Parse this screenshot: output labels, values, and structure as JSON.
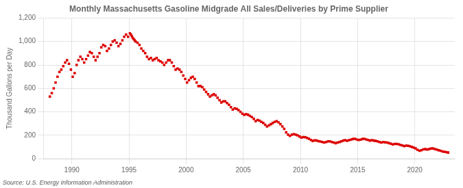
{
  "chart_data": {
    "type": "scatter",
    "title": "Monthly Massachusetts Gasoline Midgrade All Sales/Deliveries by Prime Supplier",
    "ylabel": "Thousand Gallons per Day",
    "source": "Source: U.S. Energy Information Administration",
    "color": "#dd0000",
    "marker": "square",
    "grid": true,
    "xlim": [
      1987.5,
      2023.5
    ],
    "xticks": [
      1990,
      1995,
      2000,
      2005,
      2010,
      2015,
      2020
    ],
    "ylim": [
      0,
      1200
    ],
    "yticks": [
      0,
      200,
      400,
      600,
      800,
      {
        "value": 1000,
        "label": "1,000"
      },
      {
        "value": 1200,
        "label": "1,200"
      }
    ],
    "x": [
      1988.08,
      1988.25,
      1988.42,
      1988.58,
      1988.75,
      1988.92,
      1989.08,
      1989.25,
      1989.42,
      1989.58,
      1989.75,
      1989.92,
      1990.08,
      1990.25,
      1990.42,
      1990.58,
      1990.75,
      1990.92,
      1991.08,
      1991.25,
      1991.42,
      1991.58,
      1991.75,
      1991.92,
      1992.08,
      1992.25,
      1992.42,
      1992.58,
      1992.75,
      1992.92,
      1993.08,
      1993.25,
      1993.42,
      1993.58,
      1993.75,
      1993.92,
      1994.08,
      1994.25,
      1994.42,
      1994.58,
      1994.75,
      1994.92,
      1995.08,
      1995.17,
      1995.25,
      1995.33,
      1995.42,
      1995.5,
      1995.58,
      1995.75,
      1995.92,
      1996.08,
      1996.25,
      1996.42,
      1996.58,
      1996.75,
      1996.92,
      1997.08,
      1997.25,
      1997.42,
      1997.58,
      1997.75,
      1997.92,
      1998.08,
      1998.25,
      1998.42,
      1998.58,
      1998.75,
      1998.92,
      1999.08,
      1999.25,
      1999.42,
      1999.58,
      1999.75,
      1999.92,
      2000.08,
      2000.25,
      2000.42,
      2000.58,
      2000.75,
      2000.92,
      2001.08,
      2001.25,
      2001.42,
      2001.58,
      2001.75,
      2001.92,
      2002.08,
      2002.25,
      2002.42,
      2002.58,
      2002.75,
      2002.92,
      2003.08,
      2003.25,
      2003.42,
      2003.58,
      2003.75,
      2003.92,
      2004.08,
      2004.25,
      2004.42,
      2004.58,
      2004.75,
      2004.92,
      2005.08,
      2005.25,
      2005.42,
      2005.58,
      2005.75,
      2005.92,
      2006.08,
      2006.25,
      2006.42,
      2006.58,
      2006.75,
      2006.92,
      2007.08,
      2007.25,
      2007.42,
      2007.58,
      2007.75,
      2007.92,
      2008.08,
      2008.25,
      2008.42,
      2008.58,
      2008.75,
      2008.92,
      2009.08,
      2009.25,
      2009.42,
      2009.58,
      2009.75,
      2009.92,
      2010.08,
      2010.25,
      2010.42,
      2010.58,
      2010.75,
      2010.92,
      2011.08,
      2011.25,
      2011.42,
      2011.58,
      2011.75,
      2011.92,
      2012.08,
      2012.25,
      2012.42,
      2012.58,
      2012.75,
      2012.92,
      2013.08,
      2013.25,
      2013.42,
      2013.58,
      2013.75,
      2013.92,
      2014.08,
      2014.25,
      2014.42,
      2014.58,
      2014.75,
      2014.92,
      2015.08,
      2015.25,
      2015.42,
      2015.58,
      2015.75,
      2015.92,
      2016.08,
      2016.25,
      2016.42,
      2016.58,
      2016.75,
      2016.92,
      2017.08,
      2017.25,
      2017.42,
      2017.58,
      2017.75,
      2017.92,
      2018.08,
      2018.25,
      2018.42,
      2018.58,
      2018.75,
      2018.92,
      2019.08,
      2019.25,
      2019.42,
      2019.58,
      2019.75,
      2019.92,
      2020.08,
      2020.25,
      2020.42,
      2020.58,
      2020.75,
      2020.92,
      2021.08,
      2021.25,
      2021.42,
      2021.58,
      2021.75,
      2021.92,
      2022.08,
      2022.25,
      2022.42,
      2022.58,
      2022.75,
      2022.92
    ],
    "values": [
      530,
      560,
      600,
      650,
      700,
      740,
      760,
      790,
      820,
      840,
      810,
      760,
      700,
      730,
      800,
      840,
      870,
      850,
      820,
      850,
      880,
      910,
      900,
      870,
      840,
      870,
      900,
      950,
      970,
      960,
      920,
      940,
      970,
      1000,
      1010,
      990,
      960,
      980,
      1010,
      1040,
      1060,
      1040,
      1070,
      1060,
      1045,
      1030,
      1020,
      1010,
      1000,
      990,
      970,
      940,
      920,
      900,
      870,
      850,
      860,
      840,
      850,
      860,
      840,
      830,
      820,
      800,
      820,
      840,
      840,
      820,
      790,
      760,
      770,
      760,
      740,
      710,
      680,
      650,
      670,
      690,
      700,
      680,
      650,
      620,
      620,
      610,
      590,
      570,
      550,
      530,
      540,
      550,
      540,
      520,
      500,
      480,
      490,
      490,
      475,
      460,
      440,
      420,
      430,
      425,
      415,
      400,
      385,
      375,
      380,
      375,
      365,
      355,
      340,
      320,
      330,
      325,
      315,
      305,
      290,
      275,
      285,
      295,
      305,
      315,
      320,
      310,
      295,
      275,
      255,
      225,
      205,
      195,
      205,
      210,
      205,
      200,
      190,
      180,
      185,
      183,
      178,
      170,
      160,
      152,
      157,
      155,
      150,
      147,
      143,
      138,
      142,
      148,
      148,
      143,
      138,
      133,
      138,
      143,
      148,
      155,
      158,
      153,
      158,
      163,
      168,
      170,
      165,
      160,
      163,
      168,
      170,
      165,
      160,
      155,
      158,
      155,
      152,
      148,
      143,
      138,
      142,
      140,
      138,
      133,
      128,
      122,
      127,
      127,
      123,
      118,
      113,
      108,
      112,
      110,
      106,
      101,
      95,
      88,
      75,
      68,
      72,
      80,
      82,
      79,
      82,
      87,
      88,
      83,
      78,
      72,
      68,
      63,
      59,
      56,
      53
    ]
  }
}
